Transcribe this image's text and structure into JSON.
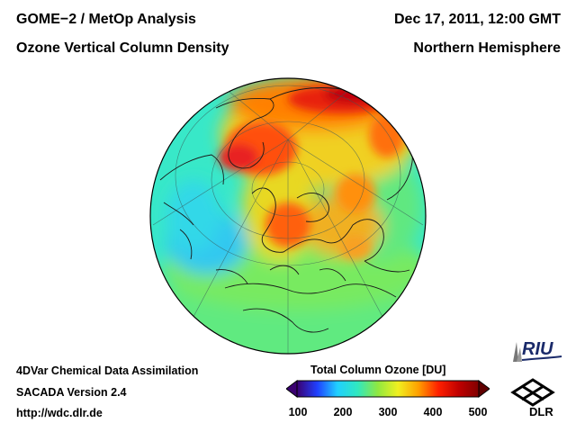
{
  "header": {
    "title_left": "GOME−2 / MetOp Analysis",
    "subtitle_left": "Ozone Vertical Column Density",
    "date": "Dec 17, 2011, 12:00 GMT",
    "region": "Northern Hemisphere"
  },
  "footer": {
    "line1": "4DVar Chemical Data Assimilation",
    "line2": "SACADA Version 2.4",
    "line3": "http://wdc.dlr.de"
  },
  "colorbar": {
    "title": "Total Column Ozone [DU]",
    "ticks": [
      "100",
      "200",
      "300",
      "400",
      "500"
    ],
    "min": 100,
    "max": 500,
    "colors": [
      "#3a0070",
      "#2040ff",
      "#20d0ff",
      "#30e8c0",
      "#90e840",
      "#f0f020",
      "#ffa000",
      "#ff2000",
      "#c00000",
      "#800000"
    ]
  },
  "logos": {
    "riu": "RIU",
    "dlr": "DLR"
  },
  "map": {
    "projection": "orthographic",
    "hemisphere": "Northern Hemisphere"
  }
}
